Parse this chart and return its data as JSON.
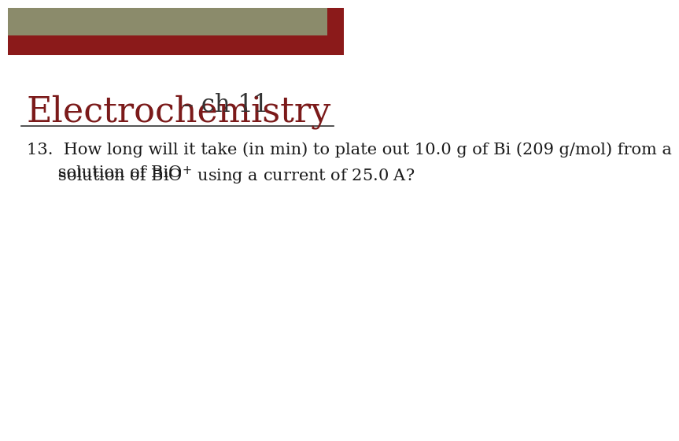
{
  "title_main": "Electrochemistry",
  "title_sub": " – ch 11",
  "title_color": "#7B1A1A",
  "title_sub_color": "#333333",
  "line_color": "#333333",
  "bg_color": "#FFFFFF",
  "header_bar1_color": "#8B8B6B",
  "header_bar2_color": "#8B1A1A",
  "corner_square_color": "#8B1A1A",
  "question_number": "13.",
  "question_text": "  How long will it take (in min) to plate out 10.0 g of Bi (209 g/mol) from a",
  "question_line2_prefix": "      solution of BiO",
  "question_line2_sup": "+",
  "question_line2_suffix": " using a current of 25.0 A?",
  "text_color": "#1A1A1A",
  "font_size_title": 32,
  "font_size_sub": 22,
  "font_size_body": 15
}
